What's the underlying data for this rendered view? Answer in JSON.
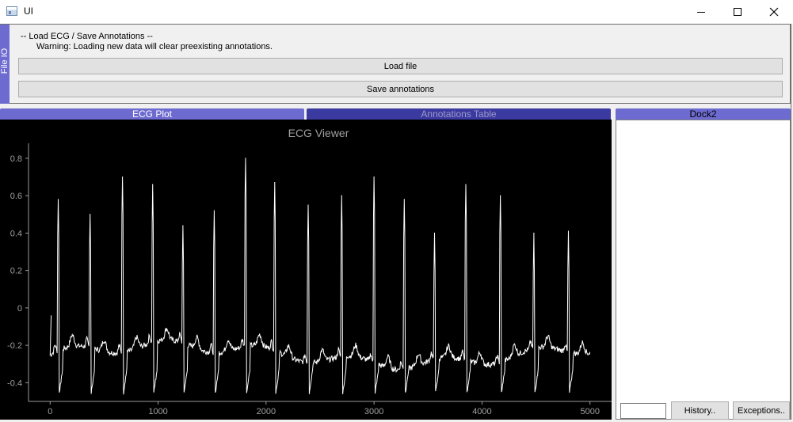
{
  "window": {
    "title": "UI",
    "controls": [
      "minimize",
      "maximize",
      "close"
    ]
  },
  "file_dock": {
    "tab_label": "File IO",
    "label_line1": "-- Load ECG / Save Annotations --",
    "label_line2": "Warning: Loading new data will clear preexisting annotations.",
    "load_button": "Load file",
    "save_button": "Save annotations"
  },
  "plot_dock": {
    "tab_ecg": "ECG Plot",
    "tab_annotations": "Annotations Table"
  },
  "dock2": {
    "title": "Dock2",
    "console_input_value": "",
    "history_button": "History..",
    "exceptions_button": "Exceptions.."
  },
  "colors": {
    "dock_tab_active": "#6d6ad0",
    "dock_tab_inactive": "#3b3aa0",
    "plot_background": "#000000",
    "trace": "#ffffff"
  },
  "chart_data": {
    "type": "line",
    "title": "ECG Viewer",
    "xlabel": "",
    "ylabel": "",
    "xlim": [
      -200,
      5200
    ],
    "ylim": [
      -0.5,
      0.88
    ],
    "x_ticks": [
      0,
      1000,
      2000,
      3000,
      4000,
      5000
    ],
    "x_tick_labels": [
      "0",
      "1000",
      "2000",
      "3000",
      "4000",
      "5000"
    ],
    "y_ticks": [
      -0.4,
      -0.2,
      0,
      0.2,
      0.4,
      0.6,
      0.8
    ],
    "y_tick_labels": [
      "-0.4",
      "-0.2",
      "0",
      "0.2",
      "0.4",
      "0.6",
      "0.8"
    ],
    "grid": false,
    "series": [
      {
        "name": "",
        "r_peaks": [
          {
            "x": 75,
            "y": 0.58
          },
          {
            "x": 370,
            "y": 0.5
          },
          {
            "x": 670,
            "y": 0.7
          },
          {
            "x": 950,
            "y": 0.66
          },
          {
            "x": 1230,
            "y": 0.44
          },
          {
            "x": 1520,
            "y": 0.52
          },
          {
            "x": 1810,
            "y": 0.8
          },
          {
            "x": 2080,
            "y": 0.67
          },
          {
            "x": 2390,
            "y": 0.55
          },
          {
            "x": 2700,
            "y": 0.6
          },
          {
            "x": 3000,
            "y": 0.7
          },
          {
            "x": 3280,
            "y": 0.58
          },
          {
            "x": 3560,
            "y": 0.4
          },
          {
            "x": 3850,
            "y": 0.66
          },
          {
            "x": 4170,
            "y": 0.6
          },
          {
            "x": 4480,
            "y": 0.4
          },
          {
            "x": 4800,
            "y": 0.41
          }
        ],
        "x_start": 0,
        "x_end": 5000,
        "baseline": -0.25,
        "baseline_range": [
          -0.3,
          -0.15
        ],
        "trough_min": -0.47
      }
    ]
  }
}
